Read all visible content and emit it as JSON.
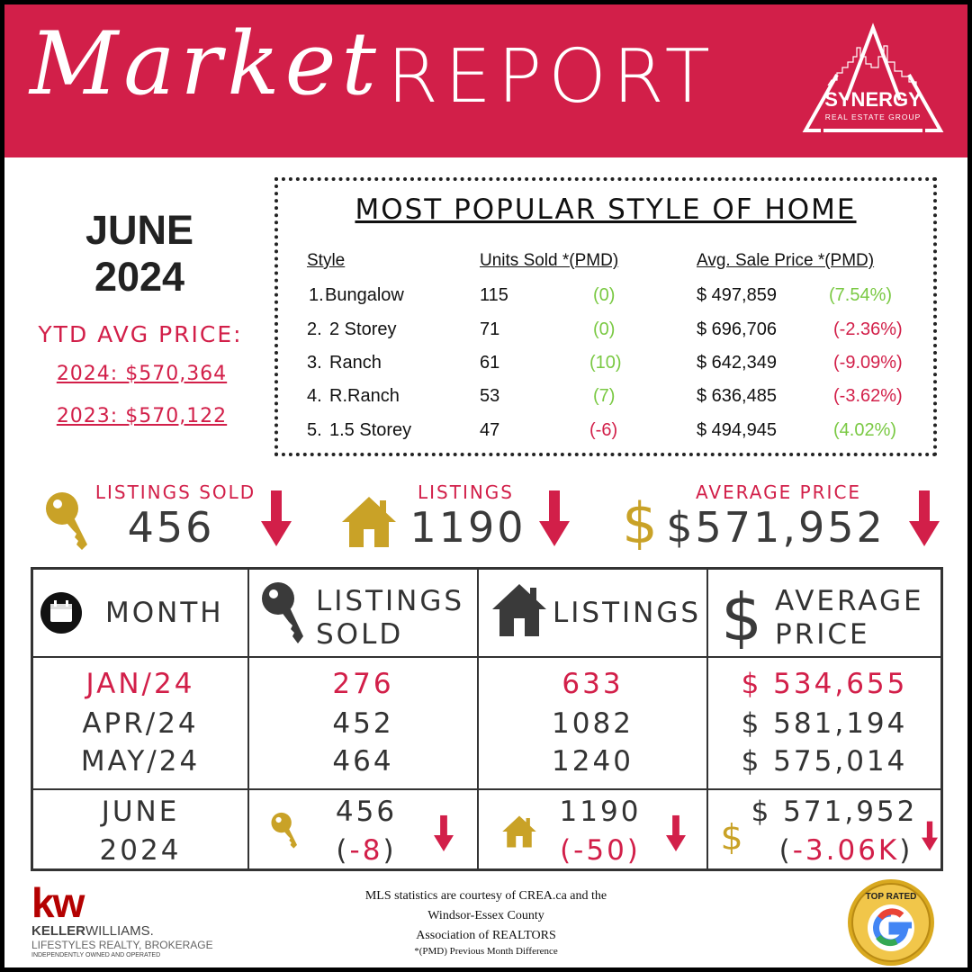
{
  "header": {
    "script_title": "Market",
    "title": "REPORT",
    "logo_name": "SYNERGY",
    "logo_sub": "REAL ESTATE GROUP"
  },
  "period": {
    "month": "JUNE",
    "year": "2024"
  },
  "ytd": {
    "label": "YTD AVG PRICE:",
    "line_2024": "2024: $570,364",
    "line_2023": "2023: $570,122"
  },
  "popular": {
    "title": "MOST POPULAR STYLE OF HOME",
    "headers": {
      "style": "Style",
      "units": "Units Sold *(PMD)",
      "price": "Avg. Sale Price *(PMD)"
    },
    "rows": [
      {
        "num": "1.",
        "style": "Bungalow",
        "units": "115",
        "units_pmd": "(0)",
        "units_trend": "pos",
        "price": "$ 497,859",
        "price_pmd": "(7.54%)",
        "price_trend": "pos"
      },
      {
        "num": "2.",
        "style": "2 Storey",
        "units": "71",
        "units_pmd": "(0)",
        "units_trend": "pos",
        "price": "$ 696,706",
        "price_pmd": "(-2.36%)",
        "price_trend": "neg"
      },
      {
        "num": "3.",
        "style": "Ranch",
        "units": "61",
        "units_pmd": "(10)",
        "units_trend": "pos",
        "price": "$ 642,349",
        "price_pmd": "(-9.09%)",
        "price_trend": "neg"
      },
      {
        "num": "4.",
        "style": "R.Ranch",
        "units": "53",
        "units_pmd": "(7)",
        "units_trend": "pos",
        "price": "$ 636,485",
        "price_pmd": "(-3.62%)",
        "price_trend": "neg"
      },
      {
        "num": "5.",
        "style": "1.5 Storey",
        "units": "47",
        "units_pmd": "(-6)",
        "units_trend": "neg",
        "price": "$ 494,945",
        "price_pmd": "(4.02%)",
        "price_trend": "pos"
      }
    ]
  },
  "stats": {
    "sold_label": "LISTINGS SOLD",
    "sold_value": "456",
    "listings_label": "LISTINGS",
    "listings_value": "1190",
    "price_label": "AVERAGE PRICE",
    "price_value": "$571,952"
  },
  "table": {
    "headers": {
      "month": "MONTH",
      "sold_1": "LISTINGS",
      "sold_2": "SOLD",
      "listings": "LISTINGS",
      "price_1": "AVERAGE",
      "price_2": "PRICE"
    },
    "rows": [
      {
        "month": "JAN/24",
        "sold": "276",
        "listings": "633",
        "price": "$ 534,655",
        "highlight": true
      },
      {
        "month": "APR/24",
        "sold": "452",
        "listings": "1082",
        "price": "$ 581,194",
        "highlight": false
      },
      {
        "month": "MAY/24",
        "sold": "464",
        "listings": "1240",
        "price": "$ 575,014",
        "highlight": false
      }
    ],
    "current": {
      "month": "JUNE",
      "year": "2024",
      "sold": "456",
      "sold_change_open": "(",
      "sold_change": "-8",
      "sold_change_close": ")",
      "listings": "1190",
      "listings_change": "(-50)",
      "price": "$ 571,952",
      "price_change_open": "(",
      "price_change": "-3.06K",
      "price_change_close": ")"
    }
  },
  "footer": {
    "kw_mark": "kw",
    "kw_name_bold": "KELLER",
    "kw_name_light": "WILLIAMS.",
    "kw_brokerage": "LIFESTYLES REALTY, BROKERAGE",
    "kw_note": "INDEPENDENTLY OWNED AND OPERATED",
    "line1": "MLS statistics are courtesy of CREA.ca and the",
    "line2": "Windsor-Essex County",
    "line3": "Association of REALTORS",
    "line4": "*(PMD) Previous Month Difference",
    "badge_text": "TOP RATED"
  },
  "colors": {
    "brand_red": "#d21f49",
    "gold": "#c9a227",
    "positive_green": "#7ac943",
    "text_dark": "#333333"
  }
}
